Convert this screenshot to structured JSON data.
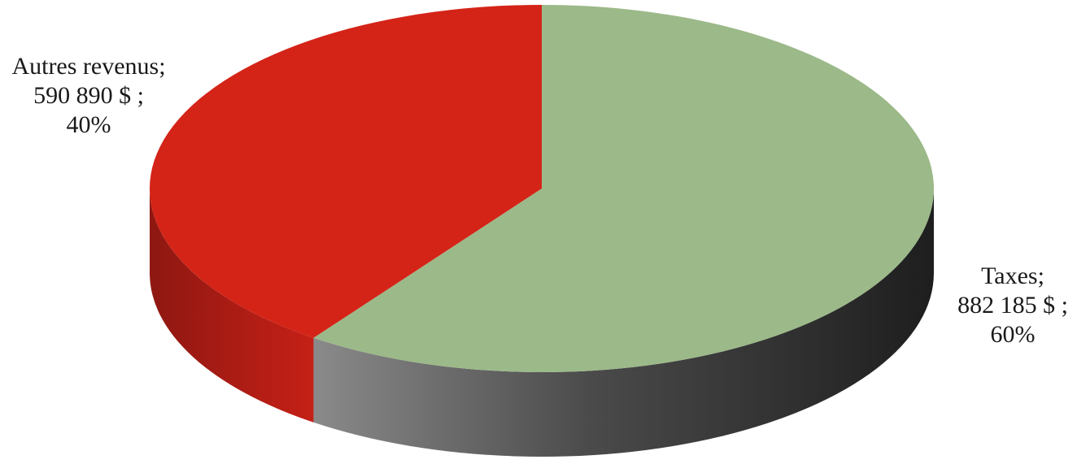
{
  "chart_data": {
    "type": "pie",
    "title": "",
    "three_d": true,
    "slices": [
      {
        "name": "Taxes",
        "value": 882185,
        "value_label": "882 185  $ ;",
        "percent": 60,
        "percent_label": "60%",
        "name_label": "Taxes;",
        "color": "#9cb989",
        "side_color": "#3a3a3a"
      },
      {
        "name": "Autres revenus",
        "value": 590890,
        "value_label": "590 890  $ ;",
        "percent": 40,
        "percent_label": "40%",
        "name_label": "Autres revenus;",
        "color": "#d42418",
        "side_color": "#a51c14"
      }
    ],
    "legend": "none"
  }
}
